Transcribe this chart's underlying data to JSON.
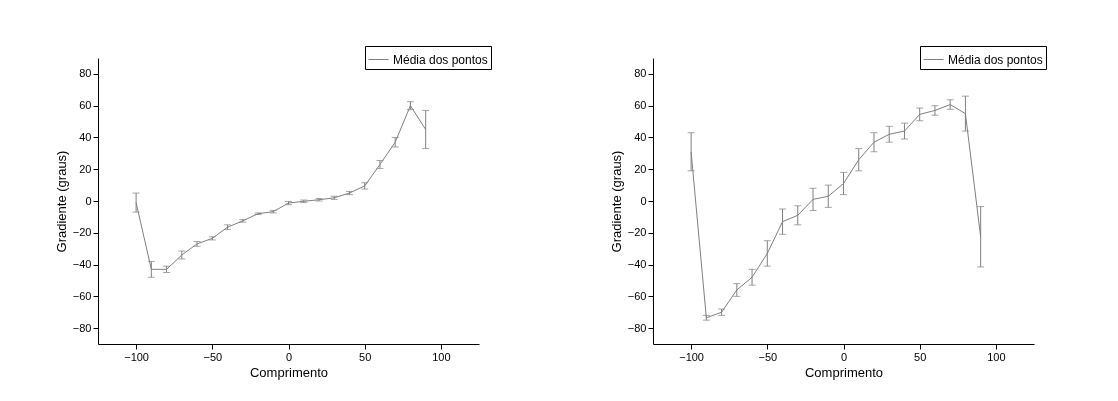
{
  "chart_data": [
    {
      "type": "line",
      "xlabel": "Comprimento",
      "ylabel": "Gradiente (graus)",
      "xlim": [
        -125,
        125
      ],
      "xticks": [
        -100,
        -50,
        0,
        50,
        100
      ],
      "ylim": [
        -90,
        90
      ],
      "yticks": [
        -80,
        -60,
        -40,
        -20,
        0,
        20,
        40,
        60,
        80
      ],
      "legend": "top right",
      "grid": false,
      "marker": "none",
      "line_style": "solid",
      "x": [
        -100,
        -90,
        -80,
        -70,
        -60,
        -50,
        -40,
        -30,
        -20,
        -10,
        0,
        10,
        20,
        30,
        40,
        50,
        60,
        70,
        80,
        90
      ],
      "series": [
        {
          "name": "Média dos pontos",
          "color": "#808080",
          "values": [
            -1,
            -43,
            -43,
            -34,
            -27,
            -23.5,
            -16.5,
            -12.5,
            -8,
            -6.7,
            -1.3,
            -0.2,
            0.8,
            2,
            5,
            9.5,
            23,
            37,
            60,
            45
          ],
          "errors": [
            6,
            5,
            2,
            2.5,
            1.5,
            1,
            1.5,
            0.8,
            0.5,
            0.8,
            1,
            0.8,
            0.8,
            1,
            1,
            2,
            2.5,
            3,
            2.5,
            12
          ]
        }
      ]
    },
    {
      "type": "line",
      "xlabel": "Comprimento",
      "ylabel": "Gradiente (graus)",
      "xlim": [
        -125,
        125
      ],
      "xticks": [
        -100,
        -50,
        0,
        50,
        100
      ],
      "ylim": [
        -90,
        90
      ],
      "yticks": [
        -80,
        -60,
        -40,
        -20,
        0,
        20,
        40,
        60,
        80
      ],
      "legend": "top right",
      "grid": false,
      "marker": "none",
      "line_style": "solid",
      "x": [
        -100,
        -90,
        -80,
        -70,
        -60,
        -50,
        -40,
        -30,
        -20,
        -10,
        0,
        10,
        20,
        30,
        40,
        50,
        60,
        70,
        80,
        90
      ],
      "series": [
        {
          "name": "Média dos pontos",
          "color": "#808080",
          "values": [
            31,
            -73.5,
            -70,
            -56,
            -48,
            -33,
            -13,
            -9,
            1,
            3,
            11,
            26,
            37,
            42,
            44,
            54.5,
            57,
            60.7,
            55,
            -22.5
          ],
          "errors": [
            12,
            1.5,
            2,
            4,
            5,
            8,
            8,
            6,
            7,
            7,
            7,
            7,
            6,
            5,
            5,
            4,
            3,
            3,
            11,
            19
          ]
        }
      ]
    }
  ]
}
